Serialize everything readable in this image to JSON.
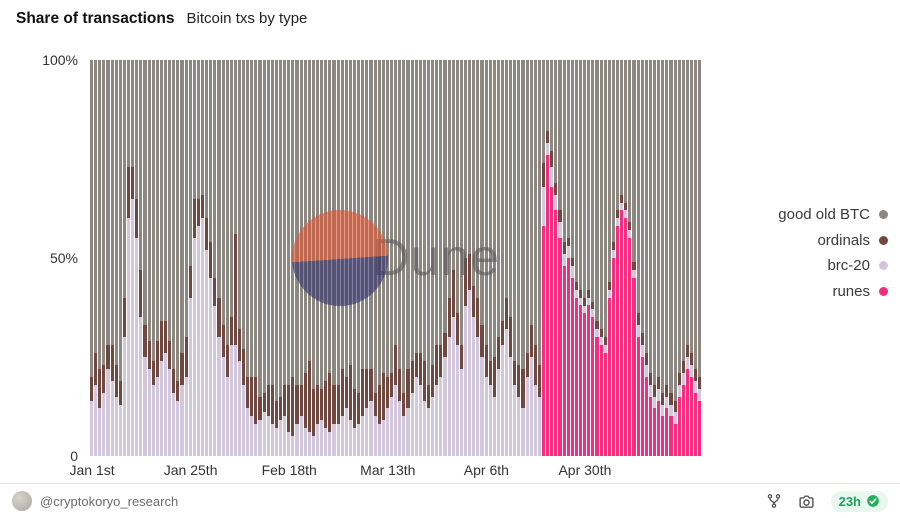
{
  "header": {
    "title": "Share of transactions",
    "subtitle": "Bitcoin txs by type"
  },
  "watermark": {
    "label": "Dune"
  },
  "legend": [
    {
      "label": "good old BTC",
      "color": "#8d8781"
    },
    {
      "label": "ordinals",
      "color": "#714840"
    },
    {
      "label": "brc-20",
      "color": "#d3c7de"
    },
    {
      "label": "runes",
      "color": "#f52d7e"
    }
  ],
  "footer": {
    "author": "@cryptokoryo_research",
    "refresh_age": "23h",
    "icons": [
      "fork-icon",
      "camera-icon",
      "check-badge-icon"
    ]
  },
  "chart_data": {
    "type": "bar",
    "stacked": true,
    "normalized_to_100": true,
    "title": "Share of transactions",
    "subtitle": "Bitcoin txs by type",
    "num_bars": 149,
    "ylim": [
      0,
      100
    ],
    "yticks": [
      {
        "label": "100%",
        "value": 100
      },
      {
        "label": "50%",
        "value": 50
      },
      {
        "label": "0",
        "value": 0
      }
    ],
    "xticks": [
      {
        "label": "Jan 1st",
        "index": 0
      },
      {
        "label": "Jan 25th",
        "index": 24
      },
      {
        "label": "Feb 18th",
        "index": 48
      },
      {
        "label": "Mar 13th",
        "index": 72
      },
      {
        "label": "Apr 6th",
        "index": 96
      },
      {
        "label": "Apr 30th",
        "index": 120
      }
    ],
    "legend_position": "right",
    "grid": false,
    "series": [
      {
        "name": "good old BTC",
        "color": "#8d8781",
        "values_rule": "remainder to 100% after other series"
      },
      {
        "name": "ordinals",
        "color": "#714840",
        "leading_zeros": 0,
        "values": [
          6,
          8,
          10,
          7,
          6,
          9,
          8,
          6,
          10,
          13,
          8,
          10,
          12,
          8,
          7,
          6,
          9,
          10,
          8,
          7,
          6,
          5,
          8,
          10,
          8,
          10,
          7,
          6,
          8,
          9,
          7,
          10,
          8,
          8,
          7,
          28,
          8,
          9,
          8,
          10,
          12,
          6,
          5,
          8,
          10,
          7,
          6,
          8,
          12,
          15,
          10,
          8,
          14,
          18,
          12,
          10,
          8,
          12,
          15,
          10,
          10,
          12,
          8,
          14,
          10,
          8,
          12,
          10,
          8,
          6,
          10,
          12,
          8,
          6,
          10,
          8,
          6,
          10,
          8,
          6,
          8,
          10,
          6,
          8,
          10,
          8,
          6,
          10,
          12,
          8,
          6,
          12,
          9,
          8,
          10,
          8,
          8,
          6,
          10,
          8,
          6,
          8,
          10,
          6,
          8,
          10,
          6,
          8,
          10,
          8,
          6,
          3,
          4,
          3,
          3,
          3,
          2,
          2,
          2,
          2,
          2,
          2,
          2,
          2,
          2,
          2,
          2,
          2,
          2,
          2,
          2,
          2,
          2,
          3,
          3,
          3,
          3,
          3,
          3,
          3,
          3,
          3,
          3,
          3,
          3,
          3,
          3,
          3,
          3
        ]
      },
      {
        "name": "brc-20",
        "color": "#d3c7de",
        "leading_zeros": 0,
        "values": [
          14,
          18,
          12,
          16,
          22,
          19,
          15,
          13,
          30,
          60,
          65,
          55,
          35,
          25,
          22,
          18,
          20,
          24,
          26,
          22,
          16,
          14,
          18,
          20,
          40,
          55,
          58,
          60,
          52,
          45,
          38,
          30,
          25,
          20,
          28,
          28,
          24,
          18,
          12,
          10,
          8,
          9,
          11,
          10,
          8,
          7,
          9,
          10,
          6,
          5,
          8,
          10,
          7,
          6,
          5,
          8,
          9,
          7,
          6,
          8,
          8,
          10,
          12,
          9,
          7,
          8,
          10,
          12,
          14,
          10,
          8,
          9,
          12,
          15,
          18,
          14,
          10,
          12,
          16,
          20,
          18,
          14,
          12,
          15,
          18,
          20,
          25,
          30,
          35,
          28,
          22,
          38,
          42,
          35,
          30,
          25,
          20,
          18,
          15,
          22,
          28,
          32,
          25,
          18,
          15,
          12,
          20,
          25,
          18,
          15,
          10,
          3,
          5,
          4,
          4,
          3,
          3,
          3,
          2,
          2,
          2,
          2,
          2,
          2,
          2,
          2,
          2,
          2,
          2,
          2,
          2,
          2,
          2,
          3,
          3,
          3,
          3,
          3,
          3,
          3,
          3,
          3,
          3,
          3,
          3,
          3,
          3,
          3,
          3
        ]
      },
      {
        "name": "runes",
        "color": "#f52d7e",
        "leading_zeros": 110,
        "values": [
          58,
          76,
          68,
          62,
          55,
          48,
          50,
          45,
          40,
          38,
          36,
          38,
          35,
          30,
          28,
          26,
          40,
          50,
          58,
          62,
          60,
          55,
          45,
          30,
          25,
          20,
          15,
          12,
          14,
          10,
          12,
          10,
          8,
          15,
          18,
          22,
          20,
          16,
          14
        ]
      }
    ]
  }
}
